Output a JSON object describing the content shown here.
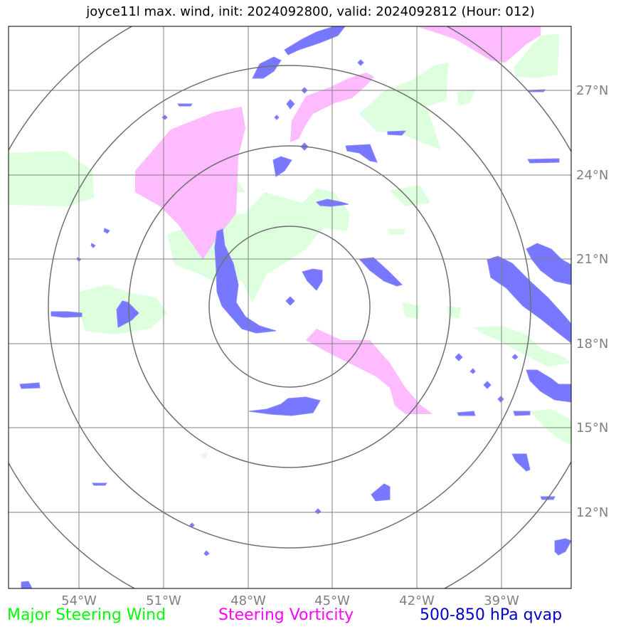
{
  "title": "joyce11l max. wind, init: 2024092800, valid: 2024092812 (Hour: 012)",
  "legend": [
    {
      "label": "Major Steering Wind",
      "color": "#00ff00"
    },
    {
      "label": "Steering Vorticity",
      "color": "#ff00ff"
    },
    {
      "label": "500-850 hPa qvap",
      "color": "#0000cd"
    }
  ],
  "colors": {
    "wind_fill": "#ddffdd",
    "vorticity_fill": "#ffbbff",
    "qvap_fill": "#7777ff",
    "grid": "#808080"
  },
  "lon_labels": [
    "54°W",
    "51°W",
    "48°W",
    "45°W",
    "42°W",
    "39°W"
  ],
  "lat_labels": [
    "27°N",
    "24°N",
    "21°N",
    "18°N",
    "15°N",
    "12°N"
  ],
  "range_rings": 4
}
